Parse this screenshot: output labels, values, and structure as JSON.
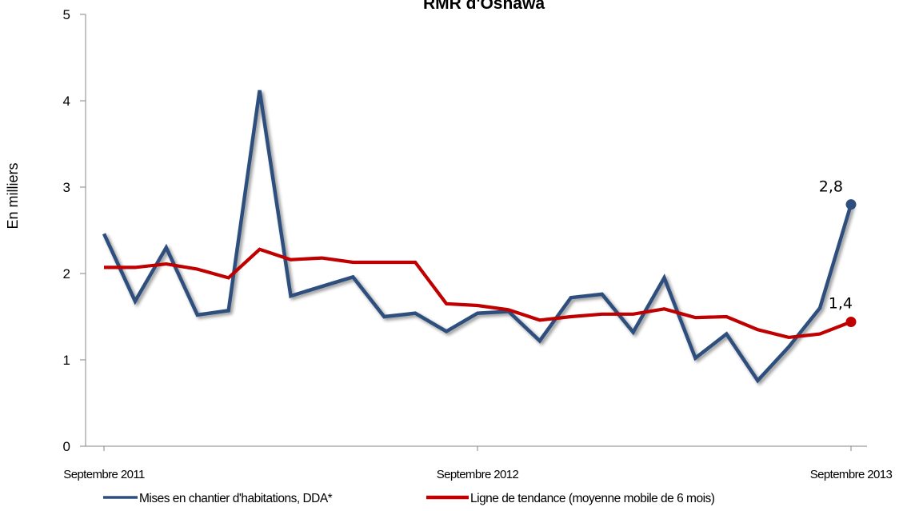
{
  "chart_data": {
    "type": "line",
    "title": "RMR d'Oshawa",
    "ylabel": "En milliers",
    "xlabel": "",
    "ylim": [
      0,
      5
    ],
    "yticks": [
      "0",
      "1",
      "2",
      "3",
      "4",
      "5"
    ],
    "x_tick_labels": [
      "Septembre 2011",
      "Septembre 2012",
      "Septembre 2013"
    ],
    "x_tick_indices": [
      0,
      12,
      24
    ],
    "grid": false,
    "legend_position": "bottom",
    "series": [
      {
        "name": "Mises en chantier d'habitations, DDA*",
        "color": "#2e4f7d",
        "values": [
          2.46,
          1.68,
          2.3,
          1.52,
          1.57,
          4.12,
          1.74,
          1.85,
          1.96,
          1.5,
          1.54,
          1.33,
          1.54,
          1.56,
          1.22,
          1.72,
          1.76,
          1.32,
          1.95,
          1.02,
          1.3,
          0.76,
          1.15,
          1.6,
          2.8
        ],
        "end_label": "2,8"
      },
      {
        "name": "Ligne de tendance (moyenne mobile de 6 mois)",
        "color": "#c00000",
        "values": [
          2.07,
          2.07,
          2.11,
          2.05,
          1.95,
          2.28,
          2.16,
          2.18,
          2.13,
          2.13,
          2.13,
          1.65,
          1.63,
          1.58,
          1.46,
          1.5,
          1.53,
          1.53,
          1.59,
          1.49,
          1.5,
          1.35,
          1.26,
          1.3,
          1.44
        ],
        "end_label": "1,4"
      }
    ]
  }
}
